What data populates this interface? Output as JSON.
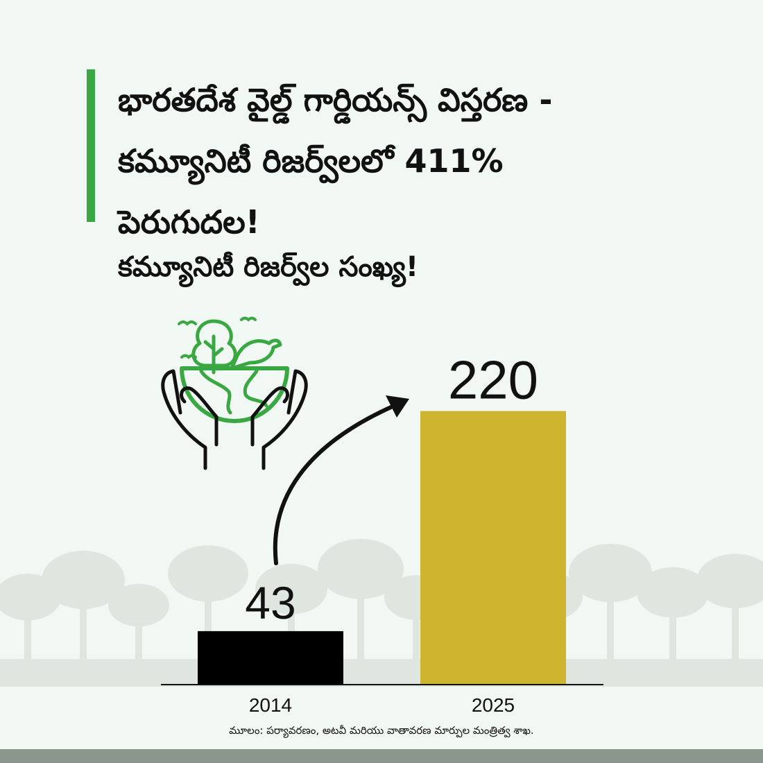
{
  "title_lines": [
    "భారతదేశ వైల్డ్ గార్డియన్స్ విస్తరణ -",
    "కమ్యూనిటీ రిజర్వ్‌లలో 411%",
    "పెరుగుదల!"
  ],
  "subtitle": "కమ్యూనిటీ రిజర్వ్‌ల సంఖ్య!",
  "source": "మూలం: పర్యావరణం, అటవీ మరియు వాతావరణ మార్పుల మంత్రిత్వ శాఖ.",
  "colors": {
    "accent": "#3aa842",
    "bar_2014": "#000000",
    "bar_2025": "#cfb52f",
    "background": "#f1f7f2",
    "trees": "#dfe5df",
    "icon_green": "#3aa842"
  },
  "icons": {
    "emblem": "hands-holding-earth-tree-bird-icon",
    "growth": "curved-arrow-up-icon"
  },
  "chart_data": {
    "type": "bar",
    "categories": [
      "2014",
      "2025"
    ],
    "values": [
      43,
      220
    ],
    "data_labels": [
      "43",
      "220"
    ],
    "ylim": [
      0,
      280
    ],
    "grid": false,
    "legend": "none"
  }
}
